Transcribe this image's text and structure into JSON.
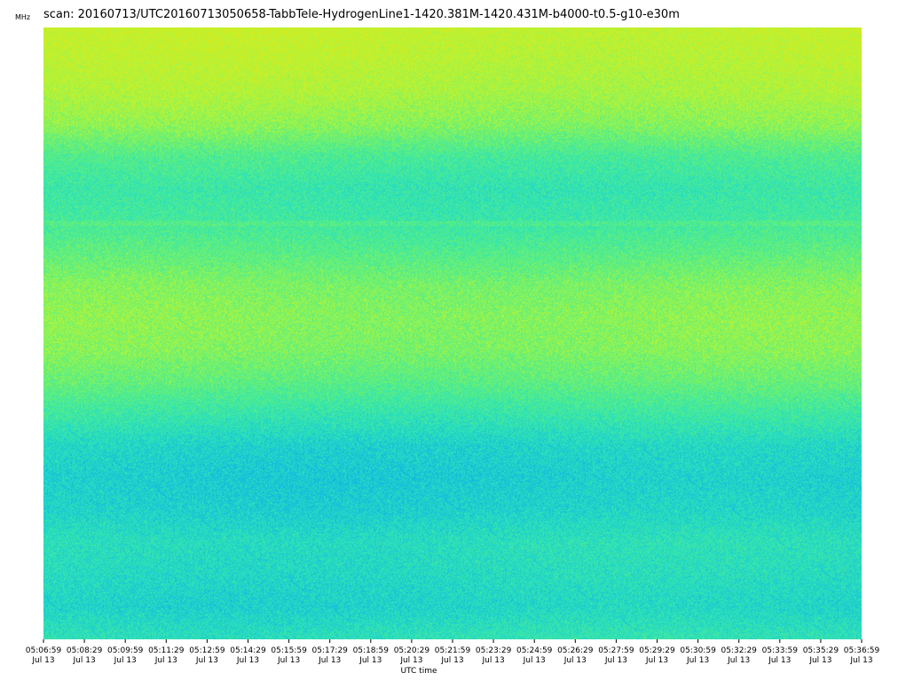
{
  "chart_data": {
    "type": "heatmap",
    "title": "scan: 20160713/UTC20160713050658-TabbTele-HydrogenLine1-1420.381M-1420.431M-b4000-t0.5-g10-e30m",
    "xlabel": "UTC time",
    "ylabel": "MHz",
    "x_ticks": [
      {
        "time": "05:06:59",
        "date": "Jul 13"
      },
      {
        "time": "05:08:29",
        "date": "Jul 13"
      },
      {
        "time": "05:09:59",
        "date": "Jul 13"
      },
      {
        "time": "05:11:29",
        "date": "Jul 13"
      },
      {
        "time": "05:12:59",
        "date": "Jul 13"
      },
      {
        "time": "05:14:29",
        "date": "Jul 13"
      },
      {
        "time": "05:15:59",
        "date": "Jul 13"
      },
      {
        "time": "05:17:29",
        "date": "Jul 13"
      },
      {
        "time": "05:18:59",
        "date": "Jul 13"
      },
      {
        "time": "05:20:29",
        "date": "Jul 13"
      },
      {
        "time": "05:21:59",
        "date": "Jul 13"
      },
      {
        "time": "05:23:29",
        "date": "Jul 13"
      },
      {
        "time": "05:24:59",
        "date": "Jul 13"
      },
      {
        "time": "05:26:29",
        "date": "Jul 13"
      },
      {
        "time": "05:27:59",
        "date": "Jul 13"
      },
      {
        "time": "05:29:29",
        "date": "Jul 13"
      },
      {
        "time": "05:30:59",
        "date": "Jul 13"
      },
      {
        "time": "05:32:29",
        "date": "Jul 13"
      },
      {
        "time": "05:33:59",
        "date": "Jul 13"
      },
      {
        "time": "05:35:29",
        "date": "Jul 13"
      },
      {
        "time": "05:36:59",
        "date": "Jul 13"
      }
    ],
    "colormap": "viridis-like (blue-cyan-green-yellow)",
    "row_profile": [
      0.93,
      0.9,
      0.86,
      0.78,
      0.62,
      0.55,
      0.58,
      0.66,
      0.75,
      0.78,
      0.76,
      0.68,
      0.56,
      0.45,
      0.42,
      0.44,
      0.5,
      0.48,
      0.45,
      0.52
    ],
    "horizontal_band_at_fraction": 0.32,
    "colors": {
      "low": "#0fa8e3",
      "mid": "#2ee6a7",
      "high": "#bfec3a"
    }
  }
}
